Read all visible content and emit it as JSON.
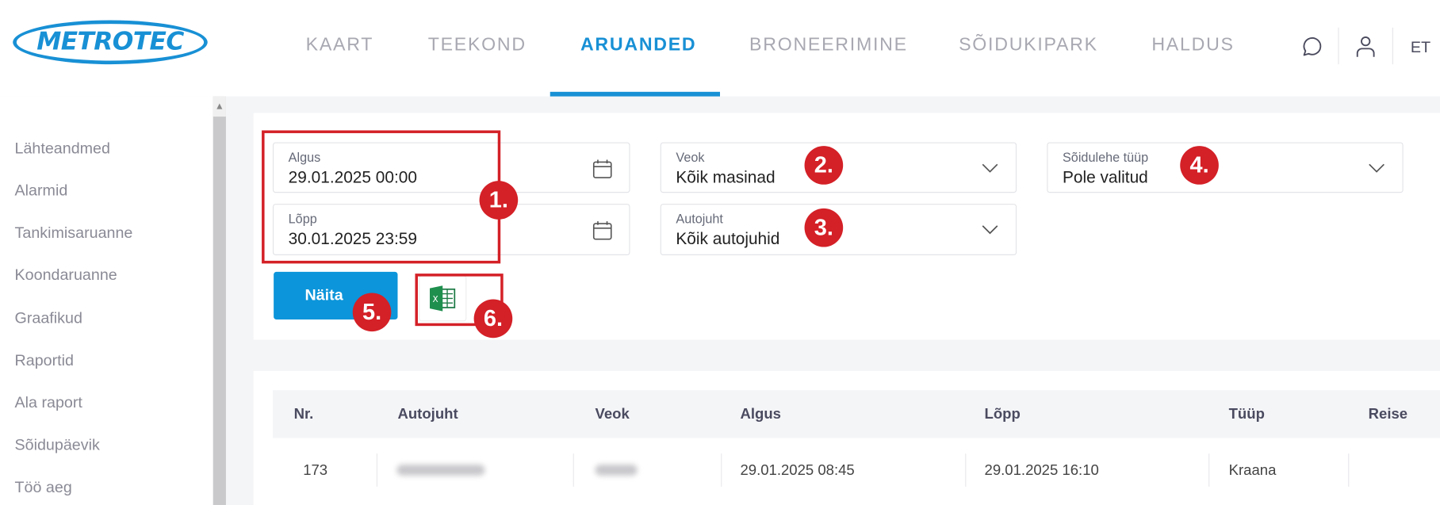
{
  "header": {
    "logo": "METROTEC",
    "nav": [
      {
        "label": "KAART"
      },
      {
        "label": "TEEKOND"
      },
      {
        "label": "ARUANDED",
        "active": true
      },
      {
        "label": "BRONEERIMINE"
      },
      {
        "label": "SÕIDUKIPARK"
      },
      {
        "label": "HALDUS"
      }
    ],
    "icons": [
      "chat-icon",
      "user-icon"
    ],
    "language": "ET"
  },
  "sidebar": {
    "items": [
      {
        "label": "Lähteandmed"
      },
      {
        "label": "Alarmid"
      },
      {
        "label": "Tankimisaruanne"
      },
      {
        "label": "Koondaruanne"
      },
      {
        "label": "Graafikud"
      },
      {
        "label": "Raportid"
      },
      {
        "label": "Ala raport"
      },
      {
        "label": "Sõidupäevik"
      },
      {
        "label": "Töö aeg"
      }
    ]
  },
  "filters": {
    "start": {
      "label": "Algus",
      "value": "29.01.2025 00:00"
    },
    "end": {
      "label": "Lõpp",
      "value": "30.01.2025 23:59"
    },
    "vehicle": {
      "label": "Veok",
      "value": "Kõik masinad"
    },
    "driver": {
      "label": "Autojuht",
      "value": "Kõik autojuhid"
    },
    "sheet_type": {
      "label": "Sõidulehe tüüp",
      "value": "Pole valitud"
    },
    "show_button": "Näita",
    "export_icon": "excel-icon"
  },
  "annotations": [
    "1.",
    "2.",
    "3.",
    "4.",
    "5.",
    "6."
  ],
  "annotation_color": "#d42027",
  "accent_color": "#1890d5",
  "table": {
    "columns": [
      "Nr.",
      "Autojuht",
      "Veok",
      "Algus",
      "Lõpp",
      "Tüüp",
      "Reise"
    ],
    "rows": [
      {
        "nr": "173",
        "start": "29.01.2025 08:45",
        "end": "29.01.2025 16:10",
        "type": "Kraana"
      }
    ]
  }
}
